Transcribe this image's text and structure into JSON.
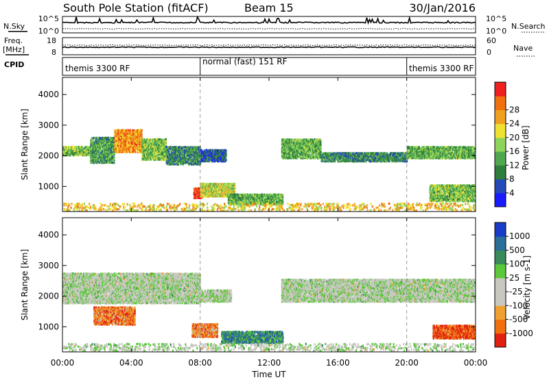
{
  "header": {
    "title": "South Pole Station (fitACF)",
    "beam": "Beam 15",
    "date": "30/Jan/2016"
  },
  "status_panel": {
    "nsky_label": "N.Sky",
    "nsearch_label": "N.Search",
    "freq_label_1": "Freq.",
    "freq_label_2": "[MHz]",
    "nave_label": "Nave",
    "cpid_label": "CPID",
    "noise_ticks": [
      "10^5",
      "10^0"
    ],
    "freq_ticks": [
      "18",
      "8"
    ],
    "nave_ticks": [
      "60",
      "0"
    ],
    "cpid_segments": [
      {
        "label": "themis 3300 RF",
        "start_hr": 0,
        "end_hr": 8
      },
      {
        "label": "normal (fast) 151 RF",
        "start_hr": 8,
        "end_hr": 20
      },
      {
        "label": "themis 3300 RF",
        "start_hr": 20,
        "end_hr": 24
      }
    ]
  },
  "chart_data": [
    {
      "type": "heatmap",
      "parameter": "Power",
      "ylabel": "Slant Range [km]",
      "ylim": [
        180,
        4560
      ],
      "yticks": [
        1000,
        2000,
        3000,
        4000
      ],
      "xlim": [
        0,
        24
      ],
      "colorbar": {
        "label": "Power [dB]",
        "ticks": [
          "4",
          "8",
          "12",
          "16",
          "20",
          "24",
          "28"
        ],
        "colors": [
          "#1a1aff",
          "#244ab8",
          "#2e7d3c",
          "#4fa84f",
          "#8fd45a",
          "#f0e030",
          "#f0a020",
          "#f07010",
          "#ee2020"
        ]
      },
      "regions": [
        {
          "t0": 0.0,
          "t1": 1.6,
          "r0": 2050,
          "r1": 2350,
          "level": 0.45
        },
        {
          "t0": 1.6,
          "t1": 3.0,
          "r0": 1800,
          "r1": 2650,
          "level": 0.35
        },
        {
          "t0": 3.0,
          "t1": 4.6,
          "r0": 2150,
          "r1": 2900,
          "level": 0.75
        },
        {
          "t0": 4.6,
          "t1": 6.0,
          "r0": 1900,
          "r1": 2600,
          "level": 0.45
        },
        {
          "t0": 6.0,
          "t1": 8.0,
          "r0": 1750,
          "r1": 2350,
          "level": 0.3
        },
        {
          "t0": 8.0,
          "t1": 9.5,
          "r0": 1850,
          "r1": 2250,
          "level": 0.2
        },
        {
          "t0": 7.6,
          "t1": 8.1,
          "r0": 650,
          "r1": 1000,
          "level": 0.95
        },
        {
          "t0": 8.0,
          "t1": 10.0,
          "r0": 700,
          "r1": 1150,
          "level": 0.55
        },
        {
          "t0": 9.6,
          "t1": 12.8,
          "r0": 450,
          "r1": 800,
          "level": 0.4
        },
        {
          "t0": 12.7,
          "t1": 15.0,
          "r0": 1950,
          "r1": 2600,
          "level": 0.4
        },
        {
          "t0": 15.0,
          "t1": 20.0,
          "r0": 1850,
          "r1": 2150,
          "level": 0.3
        },
        {
          "t0": 20.0,
          "t1": 24.0,
          "r0": 1950,
          "r1": 2350,
          "level": 0.4
        },
        {
          "t0": 21.3,
          "t1": 24.0,
          "r0": 550,
          "r1": 1100,
          "level": 0.45
        },
        {
          "t0": 0.0,
          "t1": 24.0,
          "r0": 200,
          "r1": 500,
          "level": 0.65
        }
      ]
    },
    {
      "type": "heatmap",
      "parameter": "Velocity",
      "ylabel": "Slant Range [km]",
      "ylim": [
        180,
        4560
      ],
      "yticks": [
        1000,
        2000,
        3000,
        4000
      ],
      "xlim": [
        0,
        24
      ],
      "xticks": [
        "00:00",
        "04:00",
        "08:00",
        "12:00",
        "16:00",
        "20:00",
        "00:00"
      ],
      "xlabel": "Time UT",
      "colorbar": {
        "label": "Velocity [m s-1]",
        "ticks": [
          "1000",
          "500",
          "100",
          "25",
          "-25",
          "-100",
          "-500",
          "-1000"
        ],
        "colors": [
          "#1a3cc8",
          "#2a6e9a",
          "#3a8a5a",
          "#5ac83a",
          "#c8c8c0",
          "#c8c8c0",
          "#f0a030",
          "#f07010",
          "#e02010"
        ]
      },
      "regions": [
        {
          "t0": 0.0,
          "t1": 8.0,
          "r0": 1800,
          "r1": 2800,
          "level": 0.5
        },
        {
          "t0": 8.0,
          "t1": 9.8,
          "r0": 1850,
          "r1": 2250,
          "level": 0.5
        },
        {
          "t0": 12.7,
          "t1": 24.0,
          "r0": 1850,
          "r1": 2600,
          "level": 0.5
        },
        {
          "t0": 1.8,
          "t1": 4.2,
          "r0": 1100,
          "r1": 1700,
          "level": 0.8
        },
        {
          "t0": 7.5,
          "t1": 9.0,
          "r0": 700,
          "r1": 1150,
          "level": 0.78
        },
        {
          "t0": 9.2,
          "t1": 12.8,
          "r0": 500,
          "r1": 900,
          "level": 0.25
        },
        {
          "t0": 21.5,
          "t1": 24.0,
          "r0": 650,
          "r1": 1100,
          "level": 0.9
        },
        {
          "t0": 0.0,
          "t1": 24.0,
          "r0": 200,
          "r1": 500,
          "level": 0.5
        }
      ]
    }
  ]
}
